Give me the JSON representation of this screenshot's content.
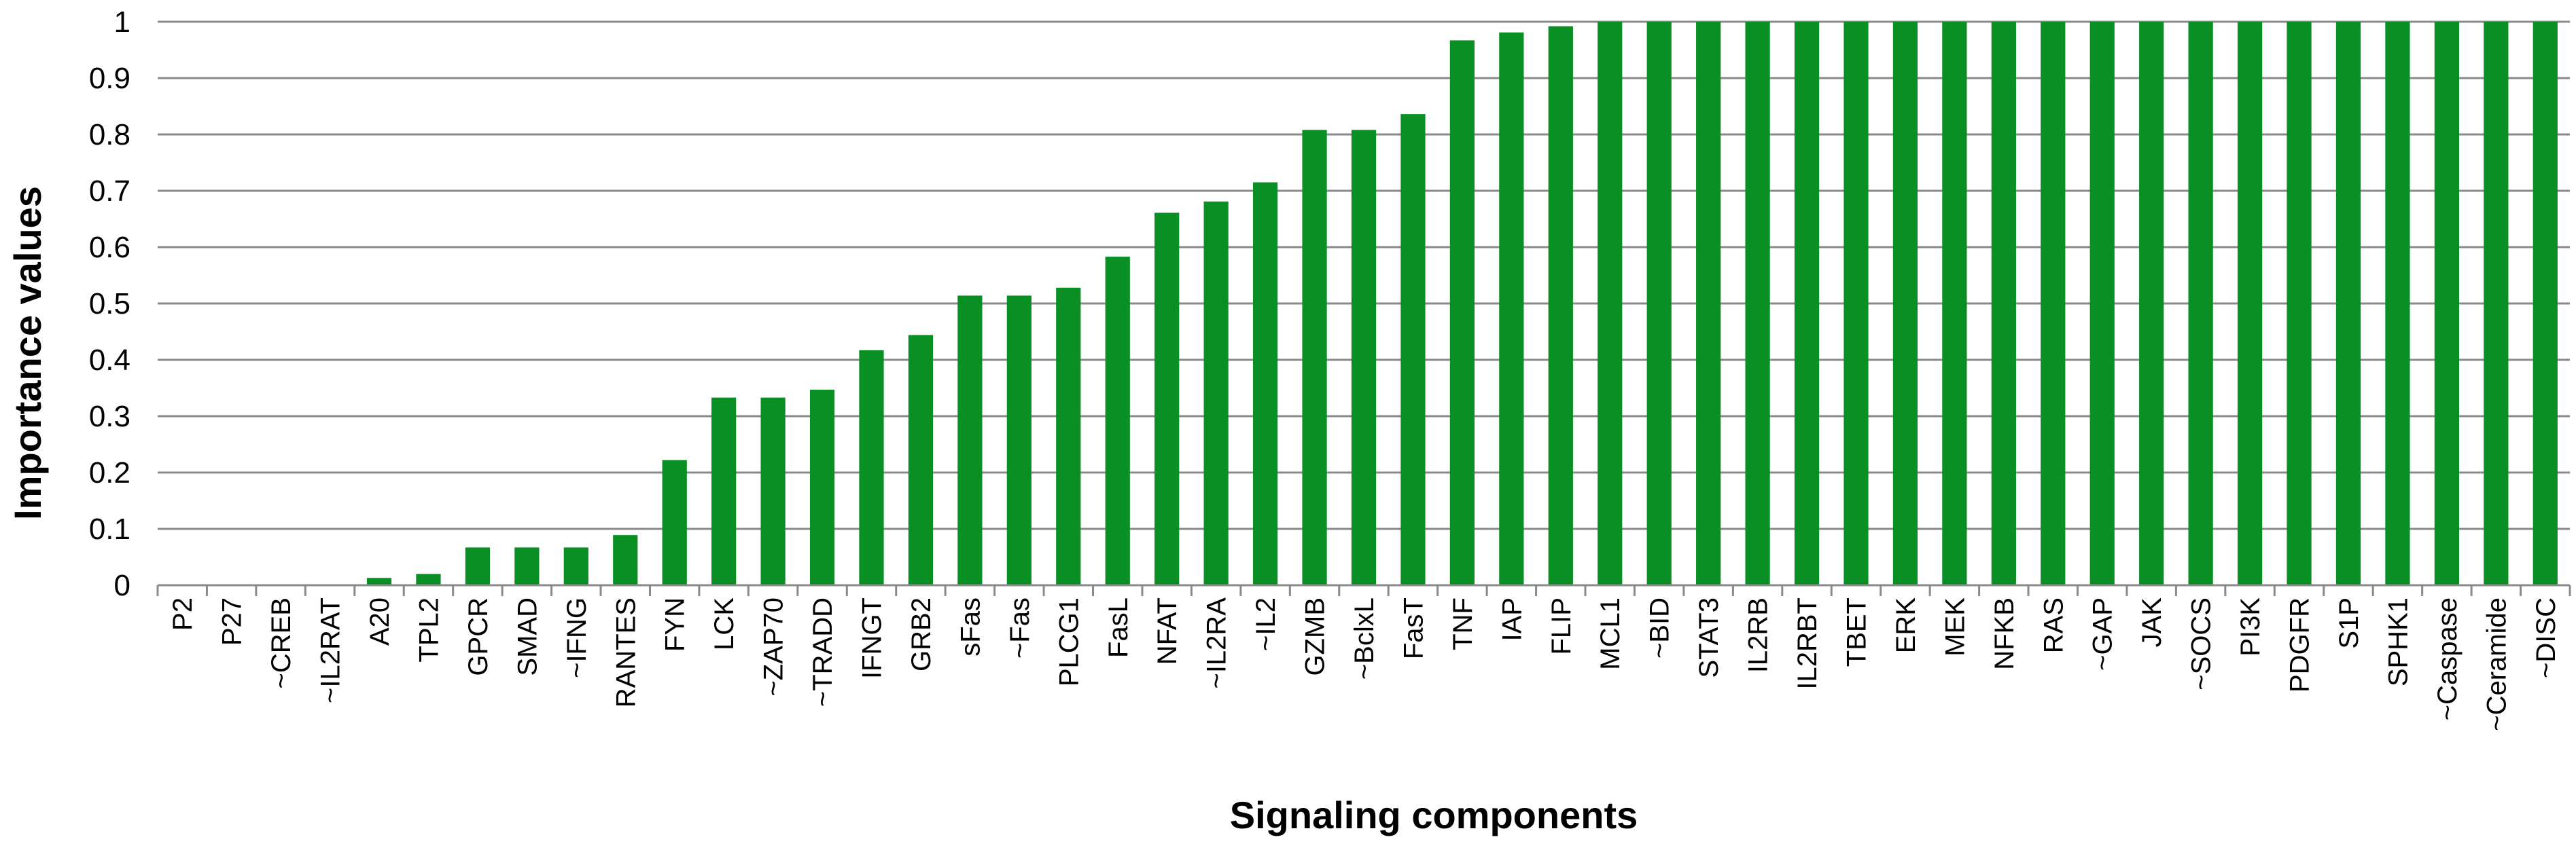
{
  "chart_data": {
    "type": "bar",
    "title": "",
    "xlabel": "Signaling components",
    "ylabel": "Importance values",
    "ylim": [
      0,
      1
    ],
    "yticks": [
      "0",
      "0.1",
      "0.2",
      "0.3",
      "0.4",
      "0.5",
      "0.6",
      "0.7",
      "0.8",
      "0.9",
      "1"
    ],
    "grid": true,
    "legend": "none",
    "bar_color": "#0a8f24",
    "categories": [
      "P2",
      "P27",
      "~CREB",
      "~IL2RAT",
      "A20",
      "TPL2",
      "GPCR",
      "SMAD",
      "~IFNG",
      "RANTES",
      "FYN",
      "LCK",
      "~ZAP70",
      "~TRADD",
      "IFNGT",
      "GRB2",
      "sFas",
      "~Fas",
      "PLCG1",
      "FasL",
      "NFAT",
      "~IL2RA",
      "~IL2",
      "GZMB",
      "~BclxL",
      "FasT",
      "TNF",
      "IAP",
      "FLIP",
      "MCL1",
      "~BID",
      "STAT3",
      "IL2RB",
      "IL2RBT",
      "TBET",
      "ERK",
      "MEK",
      "NFKB",
      "RAS",
      "~GAP",
      "JAK",
      "~SOCS",
      "PI3K",
      "PDGFR",
      "S1P",
      "SPHK1",
      "~Caspase",
      "~Ceramide",
      "~DISC"
    ],
    "values": [
      0,
      0,
      0,
      0,
      0.013,
      0.02,
      0.067,
      0.067,
      0.067,
      0.089,
      0.222,
      0.333,
      0.333,
      0.347,
      0.417,
      0.444,
      0.514,
      0.514,
      0.528,
      0.583,
      0.661,
      0.681,
      0.715,
      0.808,
      0.808,
      0.836,
      0.967,
      0.981,
      0.992,
      1,
      1,
      1,
      1,
      1,
      1,
      1,
      1,
      1,
      1,
      1,
      1,
      1,
      1,
      1,
      1,
      1,
      1,
      1,
      1
    ]
  }
}
